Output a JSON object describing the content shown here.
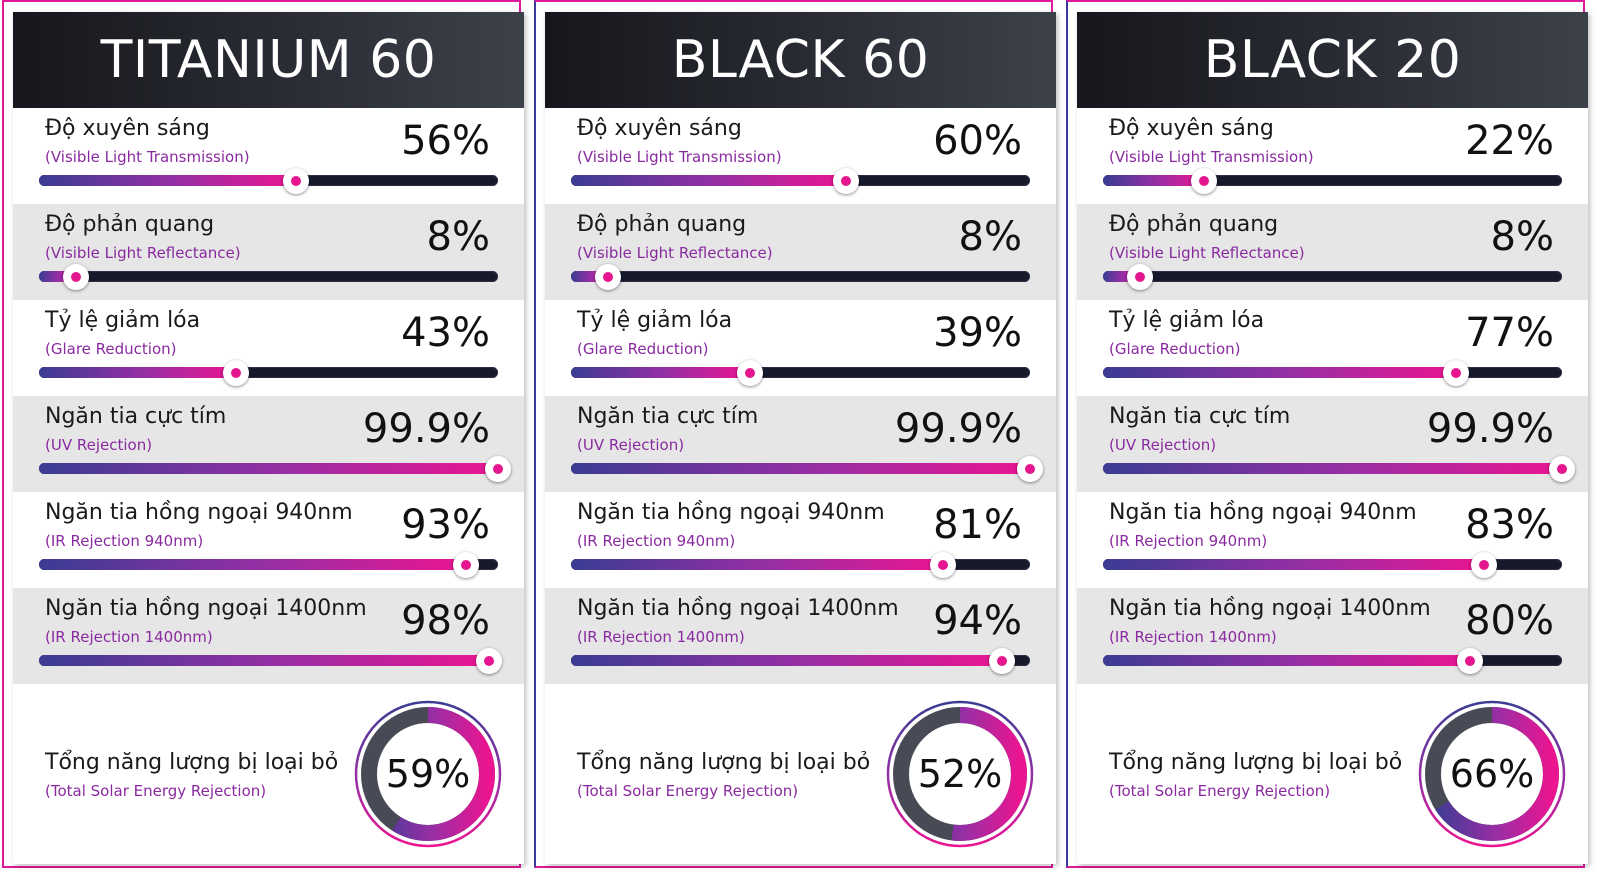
{
  "colors": {
    "accent": "#e5158f",
    "gradient_start": "#3a3c93",
    "gradient_mid": "#9a2ea5",
    "gradient_end": "#ea1590",
    "track": "#161a2a",
    "donut_remainder": "#484b55",
    "header": "#22242b",
    "subtitle": "#8a2aa0"
  },
  "cards": [
    {
      "title": "TITANIUM 60",
      "metrics": [
        {
          "label": "Độ xuyên sáng",
          "sub": "(Visible Light Transmission)",
          "value": "56%",
          "level": 0.56
        },
        {
          "label": "Độ phản quang",
          "sub": "(Visible Light Reflectance)",
          "value": "8%",
          "level": 0.08
        },
        {
          "label": "Tỷ lệ giảm lóa",
          "sub": "(Glare Reduction)",
          "value": "43%",
          "level": 0.43
        },
        {
          "label": "Ngăn tia cực tím",
          "sub": "(UV Rejection)",
          "value": "99.9%",
          "level": 0.999
        },
        {
          "label": "Ngăn tia hồng ngoại 940nm",
          "sub": "(IR Rejection 940nm)",
          "value": "93%",
          "level": 0.93
        },
        {
          "label": "Ngăn tia hồng ngoại 1400nm",
          "sub": "(IR Rejection 1400nm)",
          "value": "98%",
          "level": 0.98
        }
      ],
      "total": {
        "label": "Tổng năng lượng bị loại bỏ",
        "sub": "(Total Solar Energy Rejection)",
        "value": "59%",
        "level": 0.59
      }
    },
    {
      "title": "BLACK 60",
      "metrics": [
        {
          "label": "Độ xuyên sáng",
          "sub": "(Visible Light Transmission)",
          "value": "60%",
          "level": 0.6
        },
        {
          "label": "Độ phản quang",
          "sub": "(Visible Light Reflectance)",
          "value": "8%",
          "level": 0.08
        },
        {
          "label": "Tỷ lệ giảm lóa",
          "sub": "(Glare Reduction)",
          "value": "39%",
          "level": 0.39
        },
        {
          "label": "Ngăn tia cực tím",
          "sub": "(UV Rejection)",
          "value": "99.9%",
          "level": 0.999
        },
        {
          "label": "Ngăn tia hồng ngoại 940nm",
          "sub": "(IR Rejection 940nm)",
          "value": "81%",
          "level": 0.81
        },
        {
          "label": "Ngăn tia hồng ngoại 1400nm",
          "sub": "(IR Rejection 1400nm)",
          "value": "94%",
          "level": 0.94
        }
      ],
      "total": {
        "label": "Tổng năng lượng bị loại bỏ",
        "sub": "(Total Solar Energy Rejection)",
        "value": "52%",
        "level": 0.52
      }
    },
    {
      "title": "BLACK 20",
      "metrics": [
        {
          "label": "Độ xuyên sáng",
          "sub": "(Visible Light Transmission)",
          "value": "22%",
          "level": 0.22
        },
        {
          "label": "Độ phản quang",
          "sub": "(Visible Light Reflectance)",
          "value": "8%",
          "level": 0.08
        },
        {
          "label": "Tỷ lệ giảm lóa",
          "sub": "(Glare Reduction)",
          "value": "77%",
          "level": 0.77
        },
        {
          "label": "Ngăn tia cực tím",
          "sub": "(UV Rejection)",
          "value": "99.9%",
          "level": 0.999
        },
        {
          "label": "Ngăn tia hồng ngoại 940nm",
          "sub": "(IR Rejection 940nm)",
          "value": "83%",
          "level": 0.83
        },
        {
          "label": "Ngăn tia hồng ngoại 1400nm",
          "sub": "(IR Rejection 1400nm)",
          "value": "80%",
          "level": 0.8
        }
      ],
      "total": {
        "label": "Tổng năng lượng bị loại bỏ",
        "sub": "(Total Solar Energy Rejection)",
        "value": "66%",
        "level": 0.66
      }
    }
  ]
}
